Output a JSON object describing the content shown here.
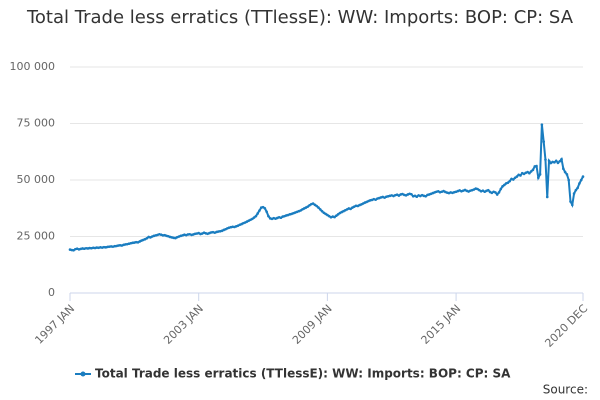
{
  "chart_data": {
    "type": "line",
    "title": "Total Trade less erratics (TTlessE): WW: Imports: BOP: CP: SA",
    "source": "Source:",
    "categories": [
      "1997 JAN",
      null,
      null,
      null,
      null,
      null,
      null,
      null,
      null,
      null,
      null,
      null,
      null,
      null,
      null,
      null,
      null,
      null,
      null,
      null,
      null,
      null,
      null,
      null,
      null,
      null,
      null,
      null,
      null,
      null,
      null,
      null,
      null,
      null,
      null,
      null,
      null,
      null,
      null,
      null,
      null,
      null,
      null,
      null,
      null,
      null,
      null,
      null,
      null,
      null,
      null,
      null,
      null,
      null,
      null,
      null,
      null,
      null,
      null,
      null,
      null,
      null,
      null,
      null,
      null,
      null,
      null,
      null,
      null,
      null,
      null,
      null,
      "2003 JAN",
      null,
      null,
      null,
      null,
      null,
      null,
      null,
      null,
      null,
      null,
      null,
      null,
      null,
      null,
      null,
      null,
      null,
      null,
      null,
      null,
      null,
      null,
      null,
      null,
      null,
      null,
      null,
      null,
      null,
      null,
      null,
      null,
      null,
      null,
      null,
      null,
      null,
      null,
      null,
      null,
      null,
      null,
      null,
      null,
      null,
      null,
      null,
      null,
      null,
      null,
      null,
      null,
      null,
      null,
      null,
      null,
      null,
      null,
      null,
      null,
      null,
      null,
      null,
      null,
      null,
      null,
      null,
      null,
      null,
      null,
      null,
      "2009 JAN",
      null,
      null,
      null,
      null,
      null,
      null,
      null,
      null,
      null,
      null,
      null,
      null,
      null,
      null,
      null,
      null,
      null,
      null,
      null,
      null,
      null,
      null,
      null,
      null,
      null,
      null,
      null,
      null,
      null,
      null,
      null,
      null,
      null,
      null,
      null,
      null,
      null,
      null,
      null,
      null,
      null,
      null,
      null,
      null,
      null,
      null,
      null,
      null,
      null,
      null,
      null,
      null,
      null,
      null,
      null,
      null,
      null,
      null,
      null,
      null,
      null,
      null,
      null,
      null,
      null,
      null,
      null,
      null,
      null,
      null,
      null,
      "2015 JAN",
      null,
      null,
      null,
      null,
      null,
      null,
      null,
      null,
      null,
      null,
      null,
      null,
      null,
      null,
      null,
      null,
      null,
      null,
      null,
      null,
      null,
      null,
      null,
      null,
      null,
      null,
      null,
      null,
      null,
      null,
      null,
      null,
      null,
      null,
      null,
      null,
      null,
      null,
      null,
      null,
      null,
      null,
      null,
      null,
      null,
      null,
      null,
      null,
      null,
      null,
      null,
      null,
      null,
      null,
      null,
      null,
      null,
      null,
      null,
      null,
      null,
      null,
      null,
      null,
      null,
      null,
      null,
      null,
      null,
      null,
      "2020 DEC"
    ],
    "series": [
      {
        "name": "Total Trade less erratics (TTlessE): WW: Imports: BOP: CP: SA",
        "color": "#1a7dc0",
        "values": [
          19200,
          19000,
          18900,
          19400,
          19600,
          19300,
          19500,
          19700,
          19600,
          19800,
          19700,
          19900,
          19800,
          20000,
          19900,
          20100,
          20000,
          20200,
          20100,
          20300,
          20200,
          20400,
          20500,
          20600,
          20500,
          20700,
          20800,
          21000,
          21100,
          21000,
          21300,
          21500,
          21600,
          21800,
          22000,
          22200,
          22300,
          22500,
          22400,
          22800,
          23200,
          23500,
          23800,
          24200,
          24800,
          24600,
          25000,
          25300,
          25500,
          25700,
          26000,
          25800,
          25500,
          25600,
          25300,
          25100,
          24800,
          24600,
          24400,
          24300,
          24700,
          25000,
          25300,
          25500,
          25800,
          25600,
          25900,
          26000,
          25700,
          25900,
          26200,
          26300,
          26500,
          26100,
          26300,
          26700,
          26400,
          26200,
          26500,
          26800,
          26900,
          26700,
          27000,
          27200,
          27300,
          27500,
          27900,
          28200,
          28600,
          28900,
          29100,
          29300,
          29200,
          29500,
          29800,
          30200,
          30500,
          30900,
          31200,
          31600,
          32000,
          32400,
          32800,
          33400,
          34000,
          35200,
          36500,
          37800,
          38000,
          37500,
          36000,
          34000,
          33000,
          32800,
          33100,
          32900,
          33200,
          33500,
          33300,
          33800,
          34000,
          34300,
          34500,
          34800,
          35000,
          35300,
          35600,
          35900,
          36200,
          36500,
          37000,
          37400,
          37800,
          38200,
          38800,
          39300,
          39600,
          39000,
          38500,
          37800,
          37000,
          36200,
          35500,
          35000,
          34500,
          34000,
          33500,
          33800,
          33600,
          34200,
          34800,
          35400,
          35800,
          36200,
          36600,
          37000,
          37400,
          37200,
          37800,
          38200,
          38600,
          38500,
          38900,
          39200,
          39600,
          40000,
          40300,
          40700,
          41000,
          41200,
          41500,
          41300,
          41800,
          42000,
          42300,
          42500,
          42200,
          42600,
          42800,
          43000,
          43200,
          42900,
          43300,
          43500,
          43100,
          43600,
          43800,
          43400,
          43200,
          43600,
          43900,
          43700,
          42800,
          43000,
          42600,
          43200,
          42900,
          43300,
          43000,
          42800,
          43400,
          43600,
          43900,
          44200,
          44500,
          44800,
          45000,
          44600,
          44800,
          45100,
          44700,
          44400,
          44200,
          44500,
          44300,
          44600,
          44800,
          45100,
          45400,
          45000,
          45300,
          45600,
          45200,
          44900,
          45300,
          45500,
          45800,
          46200,
          46000,
          45500,
          45000,
          45300,
          44800,
          45200,
          45500,
          44700,
          44300,
          44800,
          44500,
          43600,
          44500,
          46000,
          47200,
          47800,
          48500,
          48800,
          49500,
          50500,
          50200,
          51000,
          51500,
          52300,
          52000,
          53000,
          52700,
          53200,
          53500,
          53000,
          53800,
          54500,
          56000,
          56200,
          51000,
          52500,
          74500,
          67000,
          59000,
          42500,
          58500,
          57500,
          58000,
          57800,
          58500,
          57600,
          58300,
          59200,
          55000,
          53500,
          52500,
          50000,
          40500,
          39000,
          44000,
          45500,
          46500,
          48500,
          50000,
          51500
        ]
      }
    ],
    "ylim": [
      0,
      100000
    ],
    "yticks": [
      0,
      {
        "value": 25000,
        "label": "25 000"
      },
      {
        "value": 50000,
        "label": "50 000"
      },
      {
        "value": 75000,
        "label": "75 000"
      },
      {
        "value": 100000,
        "label": "100 000"
      }
    ],
    "grid": true
  }
}
